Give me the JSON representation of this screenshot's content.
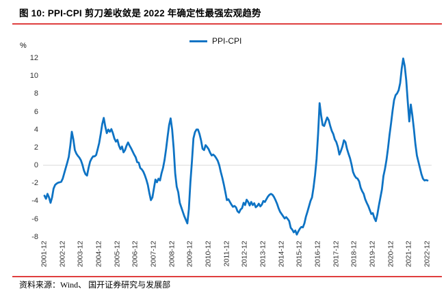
{
  "title": "图 10: PPI-CPI 剪刀差收敛是 2022 年确定性最强宏观趋势",
  "source": "资料来源：Wind、 国开证券研究与发展部",
  "colors": {
    "line": "#0e73c4",
    "rule_red": "#df3e3e",
    "gridline": "#d8d8d8",
    "text": "#000000"
  },
  "legend": {
    "label": "PPI-CPI"
  },
  "chart_data": {
    "type": "line",
    "title": "图 10: PPI-CPI 剪刀差收敛是 2022 年确定性最强宏观趋势",
    "ylabel": "%",
    "ylim": [
      -8,
      12
    ],
    "y_ticks": [
      12,
      10,
      8,
      6,
      4,
      2,
      0,
      -2,
      -4,
      -6,
      -8
    ],
    "grid": "zero-line-only",
    "legend_position": "top-center",
    "x_labels": [
      "2001-12",
      "2002-12",
      "2003-12",
      "2004-12",
      "2005-12",
      "2006-12",
      "2007-12",
      "2008-12",
      "2009-12",
      "2010-12",
      "2011-12",
      "2012-12",
      "2013-12",
      "2014-12",
      "2015-12",
      "2016-12",
      "2017-12",
      "2018-12",
      "2019-12",
      "2020-12",
      "2021-12",
      "2022-12"
    ],
    "series": [
      {
        "name": "PPI-CPI",
        "frequency": "monthly",
        "start": "2001-12",
        "end": "2022-12",
        "values": [
          -3.4,
          -3.75,
          -3.2,
          -3.6,
          -4.2,
          -3.6,
          -2.6,
          -2.2,
          -2.05,
          -1.95,
          -1.9,
          -1.85,
          -1.5,
          -0.9,
          -0.3,
          0.3,
          0.95,
          2.2,
          3.75,
          2.9,
          1.7,
          1.3,
          1.05,
          0.85,
          0.55,
          0.05,
          -0.6,
          -1.0,
          -1.15,
          -0.3,
          0.4,
          0.75,
          1.0,
          1.0,
          1.15,
          1.8,
          2.5,
          3.5,
          4.6,
          5.3,
          4.35,
          3.6,
          4.0,
          3.75,
          4.05,
          3.6,
          3.0,
          2.65,
          2.85,
          2.2,
          1.8,
          2.1,
          1.45,
          1.7,
          2.2,
          2.55,
          2.2,
          1.9,
          1.55,
          1.2,
          0.9,
          0.35,
          0.3,
          -0.3,
          -0.45,
          -0.7,
          -1.1,
          -1.6,
          -2.2,
          -3.1,
          -3.9,
          -3.6,
          -2.6,
          -1.6,
          -1.9,
          -1.5,
          -1.7,
          -0.9,
          -0.3,
          0.6,
          1.8,
          3.2,
          4.5,
          5.25,
          4.0,
          1.9,
          -0.9,
          -2.4,
          -3.0,
          -4.2,
          -4.7,
          -5.2,
          -5.7,
          -6.1,
          -6.5,
          -4.9,
          -1.9,
          0.4,
          3.0,
          3.7,
          4.0,
          4.0,
          3.5,
          2.8,
          1.85,
          1.7,
          2.25,
          2.05,
          1.8,
          1.4,
          1.1,
          1.2,
          1.05,
          0.8,
          0.5,
          0.0,
          -0.75,
          -1.4,
          -2.15,
          -3.0,
          -3.9,
          -3.8,
          -4.1,
          -4.4,
          -4.65,
          -4.55,
          -4.7,
          -5.15,
          -5.3,
          -4.95,
          -4.8,
          -4.2,
          -4.45,
          -3.85,
          -4.1,
          -4.5,
          -4.1,
          -4.45,
          -4.25,
          -4.7,
          -4.55,
          -4.3,
          -4.6,
          -4.4,
          -4.0,
          -4.1,
          -3.8,
          -3.5,
          -3.3,
          -3.2,
          -3.3,
          -3.55,
          -3.9,
          -4.3,
          -4.8,
          -5.2,
          -5.45,
          -5.7,
          -5.95,
          -5.8,
          -6.0,
          -6.25,
          -7.0,
          -7.2,
          -7.5,
          -7.3,
          -7.75,
          -7.4,
          -7.1,
          -6.9,
          -6.95,
          -6.5,
          -5.75,
          -5.2,
          -4.6,
          -4.0,
          -3.6,
          -2.5,
          -1.1,
          0.7,
          3.5,
          6.95,
          5.6,
          4.5,
          4.4,
          4.9,
          5.35,
          5.05,
          4.4,
          3.85,
          3.5,
          2.9,
          2.6,
          2.05,
          1.2,
          1.6,
          2.1,
          2.8,
          2.6,
          1.85,
          1.3,
          0.8,
          0.1,
          -0.75,
          -1.15,
          -1.4,
          -1.5,
          -1.8,
          -2.5,
          -2.9,
          -3.2,
          -3.8,
          -4.2,
          -4.55,
          -5.0,
          -5.45,
          -5.35,
          -5.9,
          -6.25,
          -5.5,
          -4.5,
          -3.6,
          -2.7,
          -1.2,
          -0.4,
          0.6,
          1.9,
          3.4,
          4.7,
          6.1,
          7.3,
          7.85,
          8.05,
          8.4,
          9.2,
          10.8,
          11.95,
          11.1,
          9.5,
          7.1,
          4.9,
          6.8,
          5.6,
          4.1,
          2.4,
          1.1,
          0.4,
          -0.3,
          -1.0,
          -1.5,
          -1.7,
          -1.65,
          -1.7
        ]
      }
    ]
  }
}
